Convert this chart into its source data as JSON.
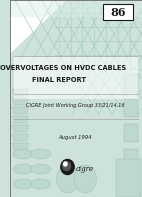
{
  "bg_color": "#cde3da",
  "bg_light": "#daeee6",
  "white": "#ffffff",
  "dark": "#1a1a1a",
  "gray": "#888888",
  "tower_color": "#b8d8cc",
  "insulator_color": "#bdd8ce",
  "number": "86",
  "title_line1": "OVERVOLTAGES ON HVDC CABLES",
  "title_line2": "FINAL REPORT",
  "subtitle": "CIGRE Joint Working Group 33/21/14.16",
  "date": "August 1994",
  "logo_text": "cigre",
  "title_fontsize": 4.8,
  "subtitle_fontsize": 3.6,
  "date_fontsize": 3.8,
  "number_fontsize": 8.0,
  "logo_fontsize": 5.0
}
